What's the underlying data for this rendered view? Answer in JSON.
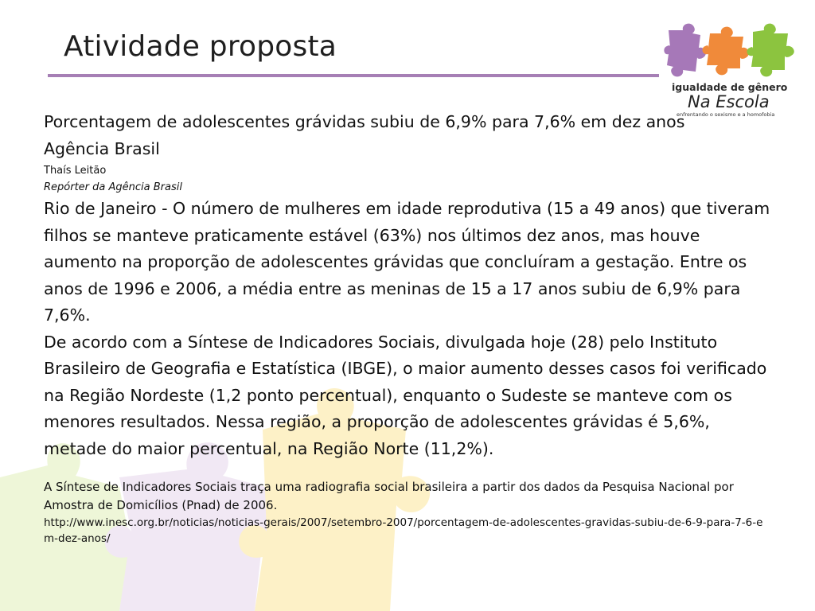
{
  "slide": {
    "title": "Atividade proposta"
  },
  "logo": {
    "line1": "igualdade de gênero",
    "line2": "Na Escola",
    "line3": "enfrentando o sexismo e a homofobia",
    "colors": [
      "#a678b8",
      "#f08a3a",
      "#8cc43f"
    ]
  },
  "article": {
    "headline": "Porcentagem de adolescentes grávidas subiu de 6,9% para 7,6% em dez anos",
    "source": "Agência Brasil",
    "author": "Thaís Leitão",
    "role": "Repórter da Agência Brasil",
    "paragraphs": [
      "Rio de Janeiro - O número de mulheres em idade reprodutiva (15 a 49 anos) que tiveram filhos se manteve praticamente estável (63%) nos últimos dez anos, mas houve aumento na proporção de adolescentes grávidas que concluíram a gestação. Entre os anos de 1996 e 2006, a média entre as meninas de 15 a 17 anos subiu de 6,9% para 7,6%.",
      "De acordo com a Síntese de Indicadores Sociais, divulgada hoje (28) pelo Instituto Brasileiro de Geografia e Estatística (IBGE), o maior aumento desses casos foi verificado na Região Nordeste (1,2 ponto percentual), enquanto o Sudeste se manteve com os menores resultados. Nessa região, a proporção de adolescentes grávidas é 5,6%, metade do maior percentual, na Região Norte (11,2%)."
    ],
    "note": "A Síntese de Indicadores Sociais traça uma radiografia social brasileira a partir dos dados da Pesquisa Nacional por Amostra de Domicílios (Pnad) de 2006.",
    "url": "http://www.inesc.org.br/noticias/noticias-gerais/2007/setembro-2007/porcentagem-de-adolescentes-gravidas-subiu-de-6-9-para-7-6-em-dez-anos/"
  },
  "theme": {
    "accent": "#a67fb5",
    "puzzle_green": "#eef6d8",
    "puzzle_purple": "#f1e8f4",
    "puzzle_yellow": "#fdf1c7"
  }
}
